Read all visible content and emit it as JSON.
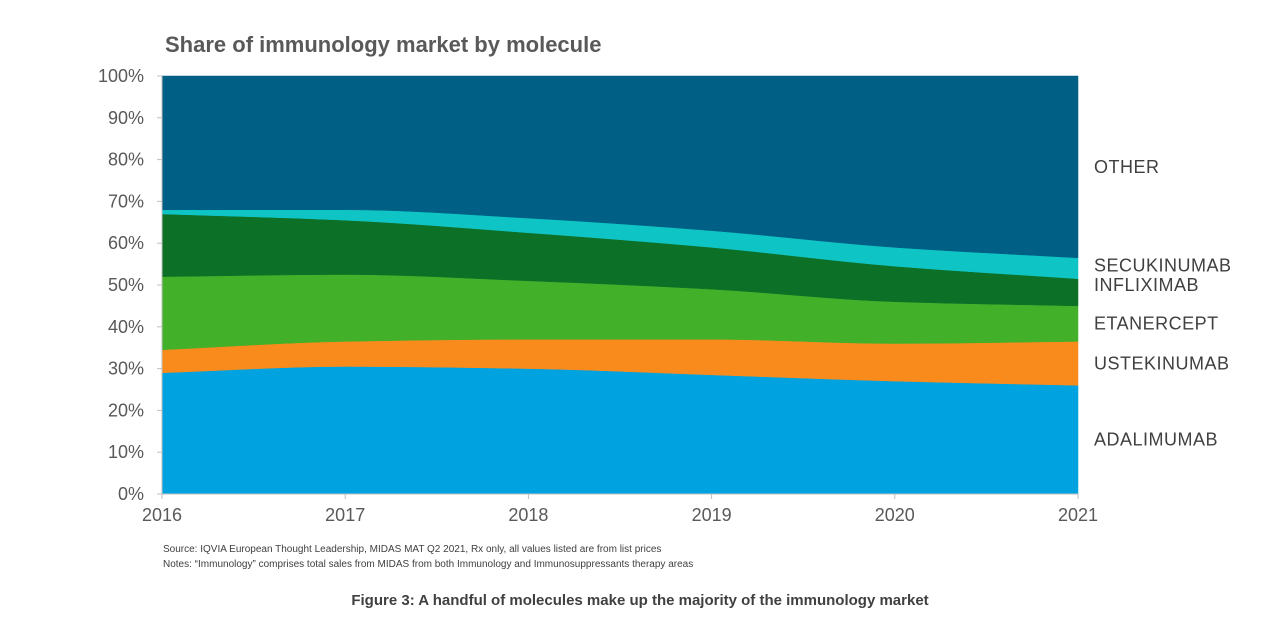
{
  "chart_data": {
    "type": "area",
    "stacked": true,
    "normalized": true,
    "title": "Share of immunology market by molecule",
    "x": [
      2016,
      2017,
      2018,
      2019,
      2020,
      2021
    ],
    "x_tick_labels": [
      "2016",
      "2017",
      "2018",
      "2019",
      "2020",
      "2021"
    ],
    "y_tick_labels": [
      "0%",
      "10%",
      "20%",
      "30%",
      "40%",
      "50%",
      "60%",
      "70%",
      "80%",
      "90%",
      "100%"
    ],
    "ylim": [
      0,
      100
    ],
    "y_unit": "%",
    "grid": false,
    "legend": "right-side labels",
    "series": [
      {
        "name": "ADALIMUMAB",
        "color": "#00A3DF",
        "values": [
          29,
          30.5,
          30,
          28.5,
          27,
          26
        ]
      },
      {
        "name": "USTEKINUMAB",
        "color": "#F98A1C",
        "values": [
          5.5,
          6,
          7,
          8.5,
          9,
          10.5
        ]
      },
      {
        "name": "ETANERCEPT",
        "color": "#43B02A",
        "values": [
          17.5,
          16,
          14,
          12,
          10,
          8.5
        ]
      },
      {
        "name": "INFLIXIMAB",
        "color": "#0C7127",
        "values": [
          15,
          13,
          11.5,
          10,
          8.5,
          6.5
        ]
      },
      {
        "name": "SECUKINUMAB",
        "color": "#0FC4C4",
        "values": [
          1,
          2.5,
          3.5,
          4,
          4.5,
          5
        ]
      },
      {
        "name": "OTHER",
        "color": "#005F85",
        "values": [
          32,
          32,
          34,
          37,
          41,
          43.5
        ]
      }
    ]
  },
  "notes": {
    "source": "Source: IQVIA European Thought Leadership, MIDAS MAT Q2 2021, Rx only, all values listed  are from list  prices",
    "notes": "Notes: “Immunology” comprises total sales from MIDAS from both Immunology and Immunosuppressants therapy areas"
  },
  "caption": "Figure 3: A handful of molecules make up the majority of the immunology market"
}
